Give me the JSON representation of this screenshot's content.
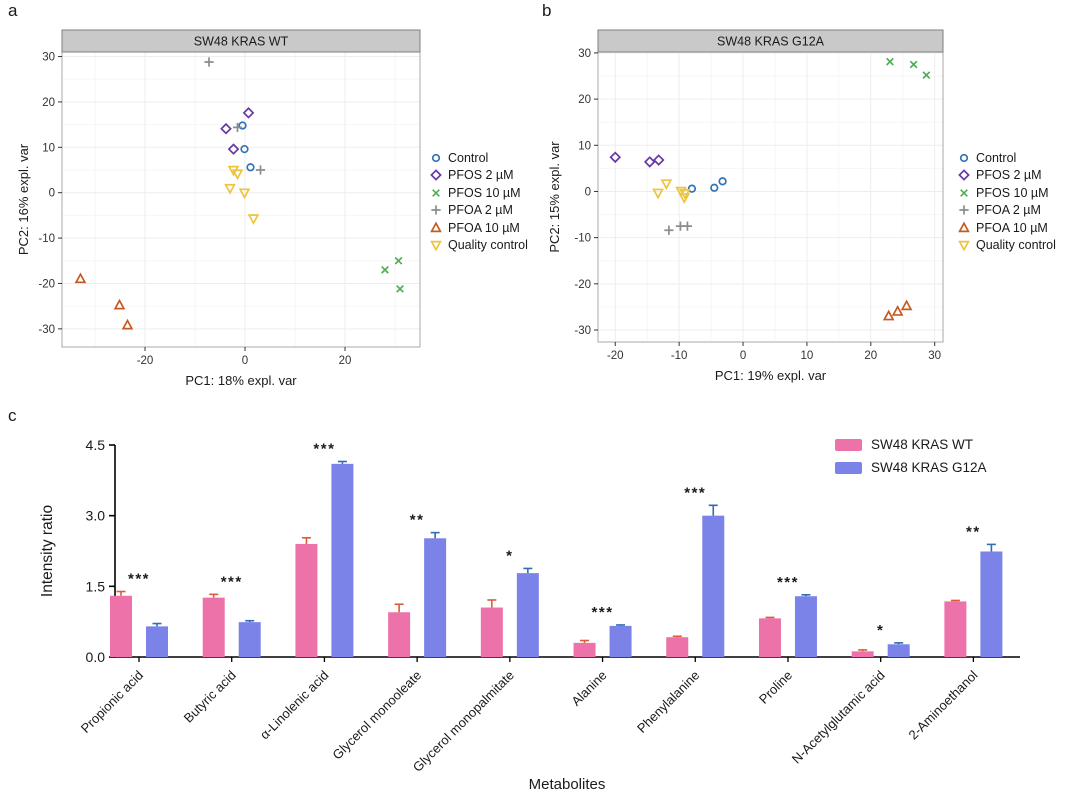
{
  "figure": {
    "letters": {
      "a": "a",
      "b": "b",
      "c": "c"
    },
    "styles": {
      "strip_fill": "#C9C9C9",
      "strip_border": "#7F7F7F",
      "panel_border": "#A9A9A9",
      "grid_major": "#EDEDED",
      "grid_minor": "#F6F6F6",
      "axis_color": "#000000",
      "tick_text_color": "#333333"
    }
  },
  "scatter_legend": {
    "items": [
      {
        "label": "Control",
        "marker": "circle",
        "color": "#3273B5"
      },
      {
        "label": "PFOS 2 µM",
        "marker": "diamond",
        "color": "#6438A5"
      },
      {
        "label": "PFOS 10 µM",
        "marker": "x",
        "color": "#4FAE54"
      },
      {
        "label": "PFOA 2 µM",
        "marker": "plus",
        "color": "#8C8C8C"
      },
      {
        "label": "PFOA 10 µM",
        "marker": "triangle-up",
        "color": "#C55A22"
      },
      {
        "label": "Quality control",
        "marker": "triangle-down",
        "color": "#EEC33E"
      }
    ]
  },
  "chart_data": [
    {
      "id": "panel_a",
      "type": "scatter",
      "title": "SW48 KRAS WT",
      "xlabel": "PC1: 18% expl. var",
      "ylabel": "PC2: 16% expl. var",
      "xlim": [
        -36.6,
        35
      ],
      "ylim": [
        -34,
        31
      ],
      "xticks": [
        -20,
        0,
        20
      ],
      "yticks": [
        -30,
        -20,
        -10,
        0,
        10,
        20,
        30
      ],
      "grid": true,
      "legend_position": "right",
      "series": [
        {
          "name": "Control",
          "marker": "circle",
          "color": "#3273B5",
          "points": [
            [
              -0.5,
              14.8
            ],
            [
              -0.1,
              9.6
            ],
            [
              1.1,
              5.6
            ]
          ]
        },
        {
          "name": "PFOS 2 µM",
          "marker": "diamond",
          "color": "#6438A5",
          "points": [
            [
              0.7,
              17.6
            ],
            [
              -3.8,
              14.1
            ],
            [
              -2.3,
              9.6
            ]
          ]
        },
        {
          "name": "PFOS 10 µM",
          "marker": "x",
          "color": "#4FAE54",
          "points": [
            [
              30.7,
              -15.0
            ],
            [
              28.0,
              -17.0
            ],
            [
              31.0,
              -21.2
            ]
          ]
        },
        {
          "name": "PFOA 2 µM",
          "marker": "plus",
          "color": "#8C8C8C",
          "points": [
            [
              -7.2,
              28.8
            ],
            [
              -1.5,
              14.4
            ],
            [
              3.1,
              5.0
            ]
          ]
        },
        {
          "name": "PFOA 10 µM",
          "marker": "triangle-up",
          "color": "#C55A22",
          "points": [
            [
              -32.9,
              -19.0
            ],
            [
              -25.1,
              -24.8
            ],
            [
              -23.5,
              -29.2
            ]
          ]
        },
        {
          "name": "Quality control",
          "marker": "triangle-down",
          "color": "#EEC33E",
          "points": [
            [
              -2.3,
              5.0
            ],
            [
              -1.5,
              4.2
            ],
            [
              -3.0,
              1.0
            ],
            [
              -0.1,
              0.0
            ],
            [
              1.7,
              -5.7
            ]
          ]
        }
      ]
    },
    {
      "id": "panel_b",
      "type": "scatter",
      "title": "SW48 KRAS G12A",
      "xlabel": "PC1: 19% expl. var",
      "ylabel": "PC2: 15% expl. var",
      "xlim": [
        -22.7,
        31.3
      ],
      "ylim": [
        -32.6,
        30.2
      ],
      "xticks": [
        -20,
        -10,
        0,
        10,
        20,
        30
      ],
      "yticks": [
        -30,
        -20,
        -10,
        0,
        10,
        20,
        30
      ],
      "grid": true,
      "legend_position": "right",
      "series": [
        {
          "name": "Control",
          "marker": "circle",
          "color": "#3273B5",
          "points": [
            [
              -8.0,
              0.6
            ],
            [
              -4.5,
              0.8
            ],
            [
              -3.2,
              2.2
            ]
          ]
        },
        {
          "name": "PFOS 2 µM",
          "marker": "diamond",
          "color": "#6438A5",
          "points": [
            [
              -20.0,
              7.4
            ],
            [
              -14.6,
              6.4
            ],
            [
              -13.2,
              6.8
            ]
          ]
        },
        {
          "name": "PFOS 10 µM",
          "marker": "x",
          "color": "#4FAE54",
          "points": [
            [
              23.0,
              28.1
            ],
            [
              26.7,
              27.5
            ],
            [
              28.7,
              25.2
            ]
          ]
        },
        {
          "name": "PFOA 2 µM",
          "marker": "plus",
          "color": "#8C8C8C",
          "points": [
            [
              -11.6,
              -8.4
            ],
            [
              -9.8,
              -7.5
            ],
            [
              -8.7,
              -7.5
            ]
          ]
        },
        {
          "name": "PFOA 10 µM",
          "marker": "triangle-up",
          "color": "#C55A22",
          "points": [
            [
              22.8,
              -27.0
            ],
            [
              24.2,
              -26.0
            ],
            [
              25.6,
              -24.8
            ]
          ]
        },
        {
          "name": "Quality control",
          "marker": "triangle-down",
          "color": "#EEC33E",
          "points": [
            [
              -12.0,
              1.7
            ],
            [
              -13.3,
              -0.3
            ],
            [
              -9.7,
              0.1
            ],
            [
              -9.1,
              -0.4
            ],
            [
              -9.2,
              -1.3
            ]
          ]
        }
      ]
    },
    {
      "id": "panel_c",
      "type": "bar",
      "xlabel": "Metabolites",
      "ylabel": "Intensity ratio",
      "ylim": [
        0,
        4.5
      ],
      "yticks": [
        0,
        1.5,
        3,
        4.5
      ],
      "grid": false,
      "legend_position": "top-right",
      "categories": [
        "Propionic acid",
        "Butyric acid",
        "α-Linolenic acid",
        "Glycerol monooleate",
        "Glycerol monopalmitate",
        "Alanine",
        "Phenylalanine",
        "Proline",
        "N-Acetylglutamic acid",
        "2-Aminoethanol"
      ],
      "series": [
        {
          "name": "SW48 KRAS WT",
          "color": "#EC72A9",
          "error_color": "#DE5A3A",
          "values": [
            1.3,
            1.26,
            2.4,
            0.95,
            1.05,
            0.3,
            0.42,
            0.82,
            0.12,
            1.18
          ],
          "errors": [
            0.09,
            0.07,
            0.13,
            0.17,
            0.16,
            0.05,
            0.02,
            0.02,
            0.03,
            0.02
          ]
        },
        {
          "name": "SW48 KRAS G12A",
          "color": "#7B83E8",
          "error_color": "#2F6EB0",
          "values": [
            0.65,
            0.74,
            4.1,
            2.52,
            1.78,
            0.66,
            3.0,
            1.29,
            0.27,
            2.24
          ],
          "errors": [
            0.06,
            0.03,
            0.05,
            0.12,
            0.1,
            0.02,
            0.22,
            0.03,
            0.03,
            0.15
          ]
        }
      ],
      "significance": [
        "***",
        "***",
        "***",
        "**",
        "*",
        "***",
        "***",
        "***",
        "*",
        "**"
      ]
    }
  ]
}
